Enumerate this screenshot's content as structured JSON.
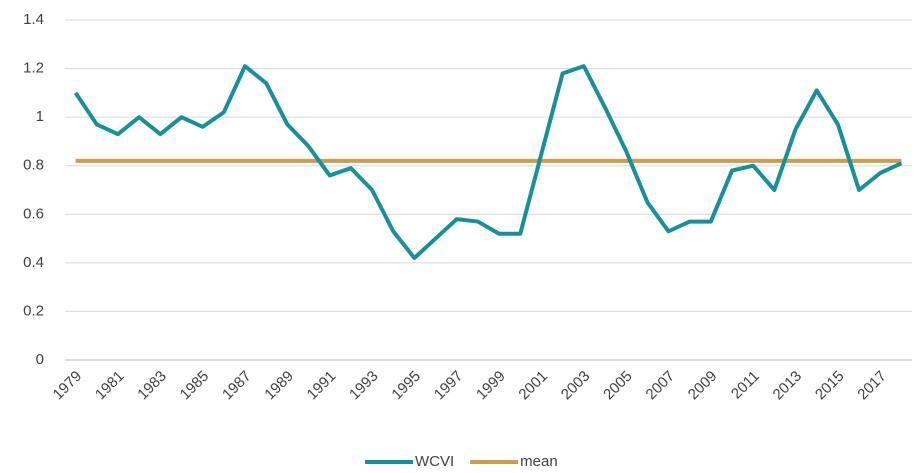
{
  "chart_data": {
    "type": "line",
    "categories": [
      "1979",
      null,
      "1981",
      null,
      "1983",
      null,
      "1985",
      null,
      "1987",
      null,
      "1989",
      null,
      "1991",
      null,
      "1993",
      null,
      "1995",
      null,
      "1997",
      null,
      "1999",
      null,
      "2001",
      null,
      "2003",
      null,
      "2005",
      null,
      "2007",
      null,
      "2009",
      null,
      "2011",
      null,
      "2013",
      null,
      "2015",
      null,
      "2017",
      null
    ],
    "series": [
      {
        "name": "WCVI",
        "color": "#17909b",
        "values": [
          1.1,
          0.97,
          0.93,
          1.0,
          0.93,
          1.0,
          0.96,
          1.02,
          1.21,
          1.14,
          0.97,
          0.88,
          0.76,
          0.79,
          0.7,
          0.53,
          0.42,
          0.5,
          0.58,
          0.57,
          0.52,
          0.52,
          0.85,
          1.18,
          1.21,
          1.04,
          0.86,
          0.65,
          0.53,
          0.57,
          0.57,
          0.78,
          0.8,
          0.7,
          0.95,
          1.11,
          0.97,
          0.7,
          0.77,
          0.81
        ]
      },
      {
        "name": "mean",
        "color": "#c99e4e",
        "values": [
          0.82,
          0.82,
          0.82,
          0.82,
          0.82,
          0.82,
          0.82,
          0.82,
          0.82,
          0.82,
          0.82,
          0.82,
          0.82,
          0.82,
          0.82,
          0.82,
          0.82,
          0.82,
          0.82,
          0.82,
          0.82,
          0.82,
          0.82,
          0.82,
          0.82,
          0.82,
          0.82,
          0.82,
          0.82,
          0.82,
          0.82,
          0.82,
          0.82,
          0.82,
          0.82,
          0.82,
          0.82,
          0.82,
          0.82,
          0.82
        ]
      }
    ],
    "ylim": [
      0,
      1.4
    ],
    "yticks": [
      0,
      0.2,
      0.4,
      0.6,
      0.8,
      1,
      1.2,
      1.4
    ],
    "grid": true,
    "legend": "bottom"
  }
}
